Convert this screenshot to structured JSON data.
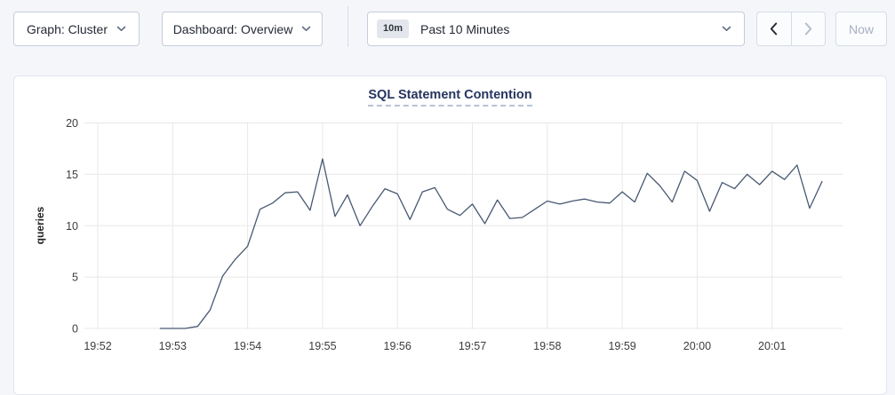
{
  "toolbar": {
    "graph_label": "Graph: Cluster",
    "dashboard_label": "Dashboard: Overview",
    "time_badge": "10m",
    "time_label": "Past 10 Minutes",
    "now_label": "Now"
  },
  "colors": {
    "page_bg": "#f4f6fa",
    "line": "#475872",
    "grid": "#e8e8e8",
    "title": "#26355f",
    "disabled_text": "#a6afc0"
  },
  "chart_data": {
    "type": "line",
    "title": "SQL Statement Contention",
    "xlabel": "",
    "ylabel": "queries",
    "ylim": [
      0,
      20
    ],
    "yticks": [
      0,
      5,
      10,
      15,
      20
    ],
    "xticks": [
      "19:52",
      "19:53",
      "19:54",
      "19:55",
      "19:56",
      "19:57",
      "19:58",
      "19:59",
      "20:00",
      "20:01"
    ],
    "grid": true,
    "legend": "none",
    "grid_color": "#e8e8e8",
    "line_color": "#475872",
    "series": [
      {
        "name": "SQL Statement Contention",
        "points": [
          [
            "19:52:50",
            0
          ],
          [
            "19:53:00",
            0
          ],
          [
            "19:53:10",
            0
          ],
          [
            "19:53:20",
            0.2
          ],
          [
            "19:53:30",
            1.8
          ],
          [
            "19:53:40",
            5.1
          ],
          [
            "19:53:50",
            6.7
          ],
          [
            "19:54:00",
            8.0
          ],
          [
            "19:54:10",
            11.6
          ],
          [
            "19:54:20",
            12.2
          ],
          [
            "19:54:30",
            13.2
          ],
          [
            "19:54:40",
            13.3
          ],
          [
            "19:54:50",
            11.5
          ],
          [
            "19:55:00",
            16.5
          ],
          [
            "19:55:10",
            10.9
          ],
          [
            "19:55:20",
            13.0
          ],
          [
            "19:55:30",
            10.0
          ],
          [
            "19:55:40",
            11.9
          ],
          [
            "19:55:50",
            13.6
          ],
          [
            "19:56:00",
            13.1
          ],
          [
            "19:56:10",
            10.6
          ],
          [
            "19:56:20",
            13.3
          ],
          [
            "19:56:30",
            13.7
          ],
          [
            "19:56:40",
            11.6
          ],
          [
            "19:56:50",
            11.0
          ],
          [
            "19:57:00",
            12.1
          ],
          [
            "19:57:10",
            10.2
          ],
          [
            "19:57:20",
            12.5
          ],
          [
            "19:57:30",
            10.7
          ],
          [
            "19:57:40",
            10.8
          ],
          [
            "19:57:50",
            11.6
          ],
          [
            "19:58:00",
            12.4
          ],
          [
            "19:58:10",
            12.1
          ],
          [
            "19:58:20",
            12.4
          ],
          [
            "19:58:30",
            12.6
          ],
          [
            "19:58:40",
            12.3
          ],
          [
            "19:58:50",
            12.2
          ],
          [
            "19:59:00",
            13.3
          ],
          [
            "19:59:10",
            12.3
          ],
          [
            "19:59:20",
            15.1
          ],
          [
            "19:59:30",
            13.9
          ],
          [
            "19:59:40",
            12.3
          ],
          [
            "19:59:50",
            15.3
          ],
          [
            "20:00:00",
            14.4
          ],
          [
            "20:00:10",
            11.4
          ],
          [
            "20:00:20",
            14.2
          ],
          [
            "20:00:30",
            13.6
          ],
          [
            "20:00:40",
            15.0
          ],
          [
            "20:00:50",
            14.0
          ],
          [
            "20:01:00",
            15.3
          ],
          [
            "20:01:10",
            14.5
          ],
          [
            "20:01:20",
            15.9
          ],
          [
            "20:01:30",
            11.7
          ],
          [
            "20:01:40",
            14.3
          ]
        ]
      }
    ]
  }
}
